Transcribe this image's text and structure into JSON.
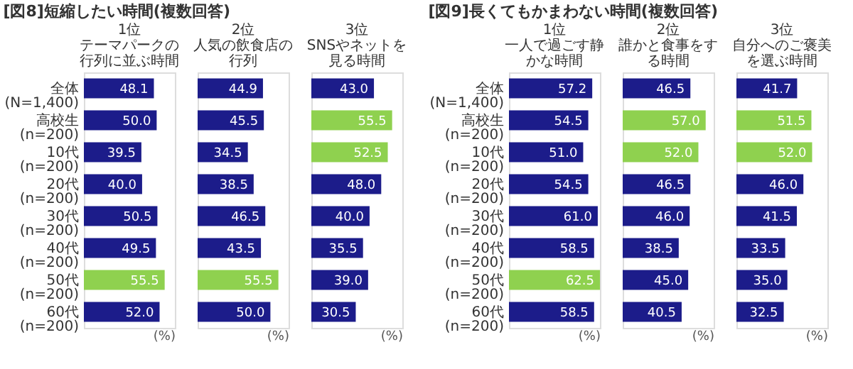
{
  "chart_data": [
    {
      "type": "bar",
      "orientation": "horizontal",
      "annotations": [
        "[図8]短縮したい時間(複数回答)"
      ],
      "title": "1位",
      "subtitle": "テーマパークの行列に並ぶ時間",
      "xlabel": "(%)",
      "tick_labels": "y",
      "categories": [
        "全体\n(N=1,400)",
        "高校生\n(n=200)",
        "10代\n(n=200)",
        "20代\n(n=200)",
        "30代\n(n=200)",
        "40代\n(n=200)",
        "50代\n(n=200)",
        "60代\n(n=200)"
      ],
      "values": [
        48.1,
        50.0,
        39.5,
        40.0,
        50.5,
        49.5,
        55.5,
        52.0
      ],
      "value_labels": [
        "48.1",
        "50.0",
        "39.5",
        "40.0",
        "50.5",
        "49.5",
        "55.5",
        "52.0"
      ],
      "colors": [
        "#1c1c8a",
        "#1c1c8a",
        "#1c1c8a",
        "#1c1c8a",
        "#1c1c8a",
        "#1c1c8a",
        "#8fd14f",
        "#1c1c8a"
      ]
    },
    {
      "type": "bar",
      "orientation": "horizontal",
      "title": "2位",
      "subtitle": "人気の飲食店の行列",
      "xlabel": "(%)",
      "tick_labels": false,
      "categories": [
        null,
        null,
        null,
        null,
        null,
        null,
        null,
        null
      ],
      "values": [
        44.9,
        45.5,
        34.5,
        38.5,
        46.5,
        43.5,
        55.5,
        50.0
      ],
      "value_labels": [
        "44.9",
        "45.5",
        "34.5",
        "38.5",
        "46.5",
        "43.5",
        "55.5",
        "50.0"
      ],
      "colors": [
        "#1c1c8a",
        "#1c1c8a",
        "#1c1c8a",
        "#1c1c8a",
        "#1c1c8a",
        "#1c1c8a",
        "#8fd14f",
        "#1c1c8a"
      ]
    },
    {
      "type": "bar",
      "orientation": "horizontal",
      "title": "3位",
      "subtitle": "SNSやネットを見る時間",
      "xlabel": "(%)",
      "tick_labels": false,
      "categories": [
        null,
        null,
        null,
        null,
        null,
        null,
        null,
        null
      ],
      "values": [
        43.0,
        55.5,
        52.5,
        48.0,
        40.0,
        35.5,
        39.0,
        30.5
      ],
      "value_labels": [
        "43.0",
        "55.5",
        "52.5",
        "48.0",
        "40.0",
        "35.5",
        "39.0",
        "30.5"
      ],
      "colors": [
        "#1c1c8a",
        "#8fd14f",
        "#8fd14f",
        "#1c1c8a",
        "#1c1c8a",
        "#1c1c8a",
        "#1c1c8a",
        "#1c1c8a"
      ]
    },
    {
      "type": "bar",
      "orientation": "horizontal",
      "annotations": [
        "[図9]長くてもかまわない時間(複数回答)"
      ],
      "title": "1位",
      "subtitle": "一人で過ごす静かな時間",
      "xlabel": "(%)",
      "tick_labels": "y",
      "categories": [
        "全体\n(N=1,400)",
        "高校生\n(n=200)",
        "10代\n(n=200)",
        "20代\n(n=200)",
        "30代\n(n=200)",
        "40代\n(n=200)",
        "50代\n(n=200)",
        "60代\n(n=200)"
      ],
      "values": [
        57.2,
        54.5,
        51.0,
        54.5,
        61.0,
        58.5,
        62.5,
        58.5
      ],
      "value_labels": [
        "57.2",
        "54.5",
        "51.0",
        "54.5",
        "61.0",
        "58.5",
        "62.5",
        "58.5"
      ],
      "colors": [
        "#1c1c8a",
        "#1c1c8a",
        "#1c1c8a",
        "#1c1c8a",
        "#1c1c8a",
        "#1c1c8a",
        "#8fd14f",
        "#1c1c8a"
      ]
    },
    {
      "type": "bar",
      "orientation": "horizontal",
      "title": "2位",
      "subtitle": "誰かと食事をする時間",
      "xlabel": "(%)",
      "tick_labels": false,
      "categories": [
        null,
        null,
        null,
        null,
        null,
        null,
        null,
        null
      ],
      "values": [
        46.5,
        57.0,
        52.0,
        46.5,
        46.0,
        38.5,
        45.0,
        40.5
      ],
      "value_labels": [
        "46.5",
        "57.0",
        "52.0",
        "46.5",
        "46.0",
        "38.5",
        "45.0",
        "40.5"
      ],
      "colors": [
        "#1c1c8a",
        "#8fd14f",
        "#8fd14f",
        "#1c1c8a",
        "#1c1c8a",
        "#1c1c8a",
        "#1c1c8a",
        "#1c1c8a"
      ]
    },
    {
      "type": "bar",
      "orientation": "horizontal",
      "title": "3位",
      "subtitle": "自分へのご褒美を選ぶ時間",
      "xlabel": "(%)",
      "tick_labels": false,
      "categories": [
        null,
        null,
        null,
        null,
        null,
        null,
        null,
        null
      ],
      "values": [
        41.7,
        51.5,
        52.0,
        46.0,
        41.5,
        33.5,
        35.0,
        32.5
      ],
      "value_labels": [
        "41.7",
        "51.5",
        "52.0",
        "46.0",
        "41.5",
        "33.5",
        "35.0",
        "32.5"
      ],
      "colors": [
        "#1c1c8a",
        "#8fd14f",
        "#8fd14f",
        "#1c1c8a",
        "#1c1c8a",
        "#1c1c8a",
        "#1c1c8a",
        "#1c1c8a"
      ]
    }
  ]
}
